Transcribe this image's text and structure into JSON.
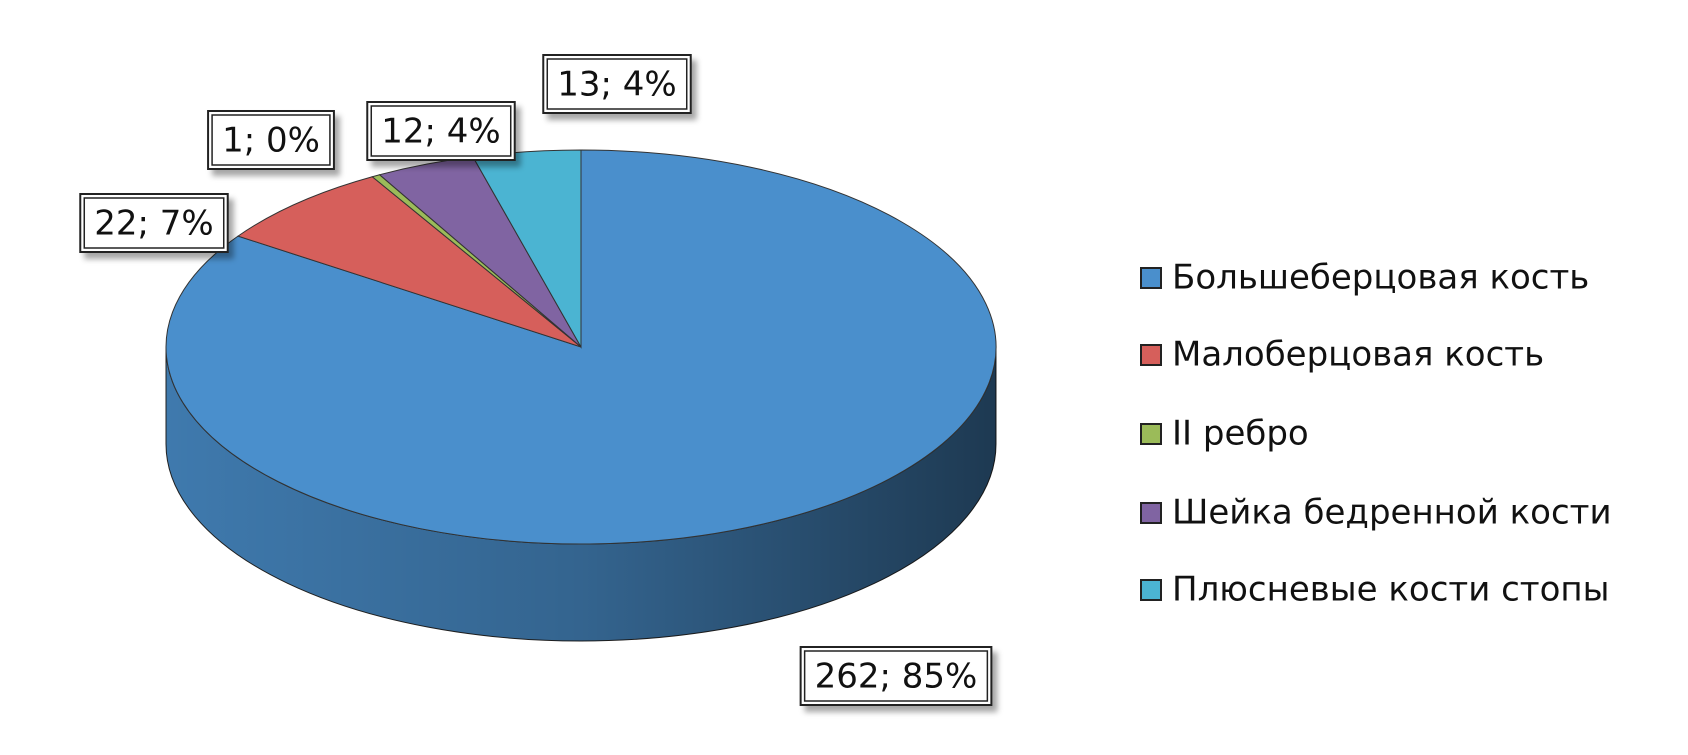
{
  "chart_data": {
    "type": "pie",
    "categories": [
      "Большеберцовая кость",
      "Малоберцовая кость",
      "II ребро",
      "Шейка бедренной кости",
      "Плюсневые кости стопы"
    ],
    "values": [
      262,
      22,
      1,
      12,
      13
    ],
    "value_labels": [
      "262; 85%",
      "22; 7%",
      "1; 0%",
      "12; 4%",
      "13; 4%"
    ],
    "colors": [
      "#4a8fcc",
      "#d65f5b",
      "#9bbb59",
      "#8064a2",
      "#4bb4d2"
    ],
    "legend": "right"
  }
}
